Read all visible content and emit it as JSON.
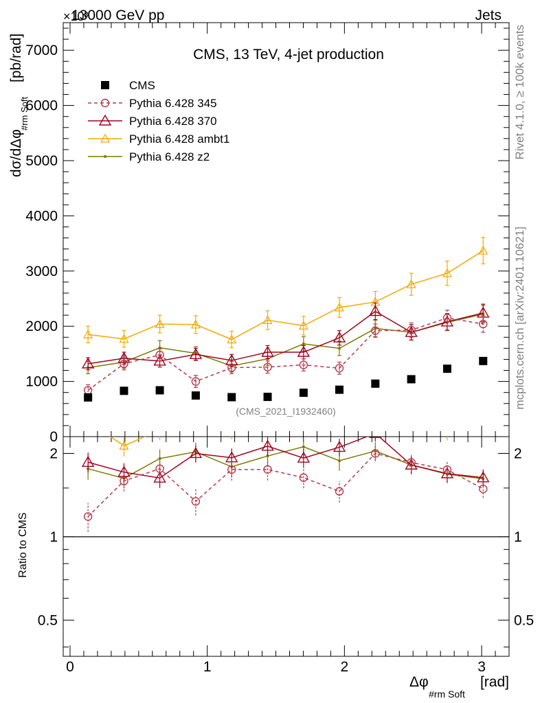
{
  "header": {
    "left": "13000 GeV pp",
    "right": "Jets",
    "exponent": "×10³"
  },
  "side_labels": {
    "rivet": "Rivet 4.1.0, ≥ 100k events",
    "mcplots": "mcplots.cern.ch [arXiv:2401.10621]"
  },
  "chart_data": {
    "type": "line",
    "title": "CMS, 13 TeV, 4-jet production",
    "xlabel_main": "Δφ",
    "xlabel_sub": "#rm Soft",
    "xlabel_unit": "[rad]",
    "ylabel_main": "dσ/dΔφ",
    "ylabel_sub": "#rm Soft",
    "ylabel_unit": "[pb/rad]",
    "ratio_ylabel": "Ratio to CMS",
    "watermark": "(CMS_2021_I1932460)",
    "xlim": [
      -0.05,
      3.2
    ],
    "ylim": [
      0,
      7500
    ],
    "ratio_ylim": [
      0.37,
      2.3
    ],
    "xticks": [
      "0",
      "1",
      "2",
      "3"
    ],
    "yticks": [
      "0",
      "1000",
      "2000",
      "3000",
      "4000",
      "5000",
      "6000",
      "7000"
    ],
    "ratio_yticks": [
      "0.5",
      "1",
      "2"
    ],
    "x": [
      0.131,
      0.393,
      0.654,
      0.916,
      1.178,
      1.44,
      1.702,
      1.963,
      2.225,
      2.487,
      2.749,
      3.011
    ],
    "series": [
      {
        "name": "CMS",
        "color": "#000000",
        "values": [
          710,
          830,
          840,
          745,
          715,
          720,
          795,
          850,
          960,
          1040,
          1230,
          1370
        ]
      },
      {
        "name": "Pythia 6.428 345",
        "color": "#b4384c",
        "values": [
          840,
          1320,
          1480,
          1000,
          1250,
          1260,
          1300,
          1240,
          1920,
          1930,
          2150,
          2040
        ],
        "err": [
          100,
          110,
          110,
          110,
          110,
          110,
          110,
          110,
          120,
          130,
          140,
          150
        ]
      },
      {
        "name": "Pythia 6.428 370",
        "color": "#a0001c",
        "values": [
          1320,
          1420,
          1370,
          1490,
          1380,
          1530,
          1530,
          1790,
          2270,
          1890,
          2080,
          2240
        ],
        "err": [
          110,
          110,
          110,
          110,
          110,
          120,
          120,
          130,
          150,
          140,
          150,
          160
        ]
      },
      {
        "name": "Pythia 6.428 ambt1",
        "color": "#f4a800",
        "values": [
          1850,
          1770,
          2040,
          2030,
          1760,
          2110,
          2010,
          2340,
          2440,
          2760,
          2960,
          3370
        ],
        "err": [
          150,
          150,
          160,
          160,
          150,
          170,
          170,
          180,
          190,
          200,
          220,
          240
        ]
      },
      {
        "name": "Pythia 6.428 z2",
        "color": "#7a7a00",
        "values": [
          1250,
          1350,
          1610,
          1510,
          1280,
          1410,
          1680,
          1600,
          1960,
          1890,
          2070,
          2220
        ],
        "err": [
          110,
          110,
          130,
          120,
          110,
          120,
          130,
          130,
          150,
          140,
          150,
          160
        ]
      }
    ]
  }
}
